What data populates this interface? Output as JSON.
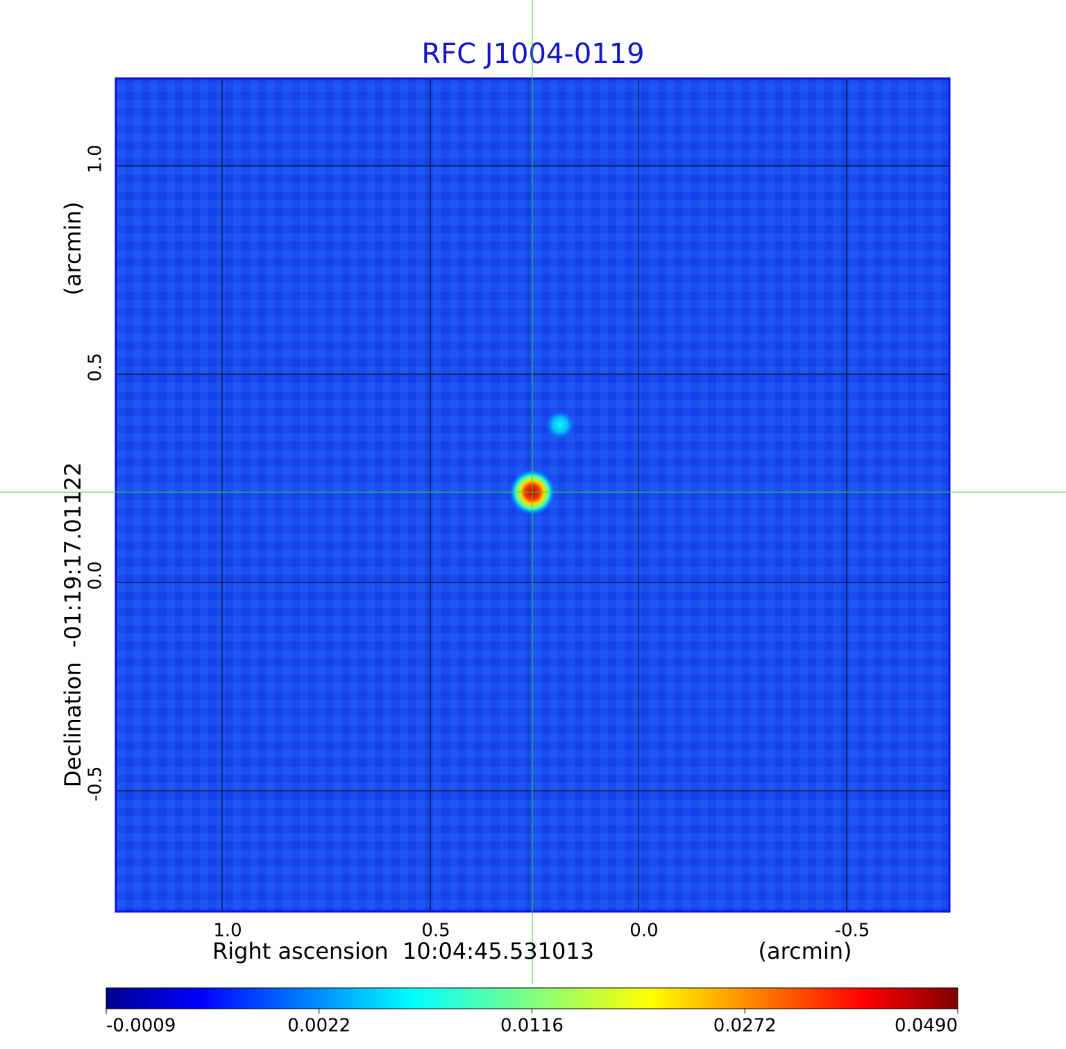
{
  "chart_data": {
    "type": "image",
    "title": "RFC J1004-0119",
    "x_label": "Right ascension  10:04:45.531013",
    "x_unit": "(arcmin)",
    "y_label": "Declination  -01:19:17.01122",
    "y_unit": "(arcmin)",
    "xlim": [
      1.255,
      -0.7467
    ],
    "ylim": [
      -0.79,
      1.21
    ],
    "xticks": [
      {
        "value": 1,
        "label": "1.0"
      },
      0.5,
      {
        "value": 0,
        "label": "0.0"
      },
      -0.5
    ],
    "yticks": [
      -0.5,
      {
        "value": 0,
        "label": "0.0"
      },
      0.5,
      {
        "value": 1,
        "label": "1.0"
      }
    ],
    "grid": true,
    "colorbar_ticks": [
      -0.0009,
      0.0022,
      0.0116,
      0.0272,
      {
        "value": 0.049,
        "label": "0.0490"
      }
    ]
  }
}
